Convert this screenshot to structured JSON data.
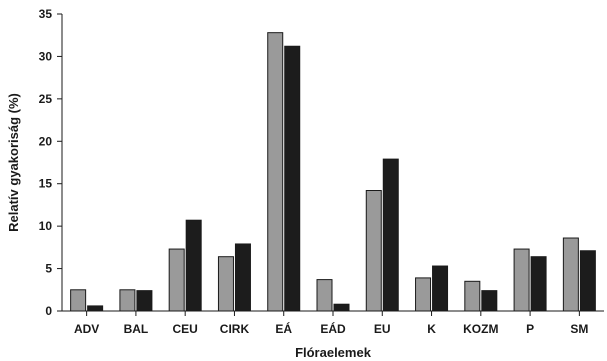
{
  "chart_data": {
    "type": "bar",
    "title": "",
    "xlabel": "Flóraelemek",
    "ylabel": "Relatív gyakoriság (%)",
    "ylim": [
      0,
      35
    ],
    "yticks": [
      0,
      5,
      10,
      15,
      20,
      25,
      30,
      35
    ],
    "grid": false,
    "legend": "none",
    "categories": [
      "ADV",
      "BAL",
      "CEU",
      "CIRK",
      "EÁ",
      "EÁD",
      "EU",
      "K",
      "KOZM",
      "P",
      "SM"
    ],
    "series": [
      {
        "color": "#9a9a9a",
        "values": [
          2.5,
          2.5,
          7.3,
          6.4,
          32.8,
          3.7,
          14.2,
          3.9,
          3.5,
          7.3,
          8.6
        ]
      },
      {
        "color": "#1c1c1c",
        "values": [
          0.6,
          2.4,
          10.7,
          7.9,
          31.2,
          0.8,
          17.9,
          5.3,
          2.4,
          6.4,
          7.1
        ]
      }
    ]
  }
}
